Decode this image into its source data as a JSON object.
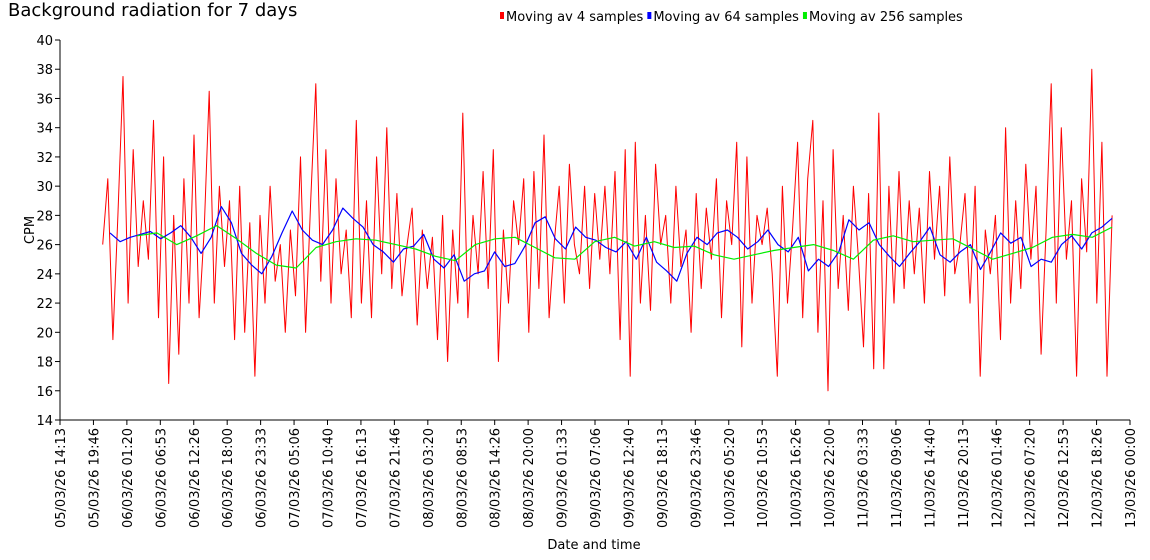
{
  "chart_data": {
    "type": "line",
    "title": "Background radiation for 7 days",
    "xlabel": "Date and time",
    "ylabel": "CPM",
    "ylim": [
      14,
      40
    ],
    "yticks": [
      14,
      16,
      18,
      20,
      22,
      24,
      26,
      28,
      30,
      32,
      34,
      36,
      38,
      40
    ],
    "xlim_hours": [
      0,
      177.78
    ],
    "xtick_labels": [
      "05/03/26 14:13",
      "05/03/26 19:46",
      "06/03/26 01:20",
      "06/03/26 06:53",
      "06/03/26 12:26",
      "06/03/26 18:00",
      "06/03/26 23:33",
      "07/03/26 05:06",
      "07/03/26 10:40",
      "07/03/26 16:13",
      "07/03/26 21:46",
      "08/03/26 03:20",
      "08/03/26 08:53",
      "08/03/26 14:26",
      "08/03/26 20:00",
      "09/03/26 01:33",
      "09/03/26 07:06",
      "09/03/26 12:40",
      "09/03/26 18:13",
      "09/03/26 23:46",
      "10/03/26 05:20",
      "10/03/26 10:53",
      "10/03/26 16:26",
      "10/03/26 22:00",
      "11/03/26 03:33",
      "11/03/26 09:06",
      "11/03/26 14:40",
      "11/03/26 20:13",
      "12/03/26 01:46",
      "12/03/26 07:20",
      "12/03/26 12:53",
      "12/03/26 18:26",
      "13/03/26 00:00"
    ],
    "grid": false,
    "legend_position": "top-center",
    "series": [
      {
        "name": "Moving av 4 samples",
        "color": "#ff0000",
        "x_start_hours": 7.1,
        "x_end_hours": 174.8,
        "values": [
          26,
          30.5,
          19.5,
          28,
          37.5,
          22,
          32.5,
          24.5,
          29,
          25,
          34.5,
          21,
          32,
          16.5,
          28,
          18.5,
          30.5,
          22,
          33.5,
          21,
          27,
          36.5,
          22,
          30,
          24.5,
          29,
          19.5,
          30,
          20,
          27.5,
          17,
          28,
          22,
          30,
          23.5,
          26,
          20,
          27,
          22.5,
          32,
          20,
          29,
          37,
          23.5,
          32.5,
          22,
          30.5,
          24,
          27,
          21,
          34.5,
          22,
          29,
          21,
          32,
          24,
          34,
          23,
          29.5,
          22.5,
          26,
          28.5,
          20.5,
          27,
          23,
          26.5,
          19.5,
          28,
          18,
          27,
          22,
          35,
          21,
          28,
          24,
          31,
          23,
          32.5,
          18,
          27,
          22,
          29,
          26,
          30.5,
          20,
          31,
          23,
          33.5,
          21,
          26,
          30,
          22,
          31.5,
          26,
          24,
          30,
          23,
          29.5,
          25,
          30,
          24,
          31,
          19.5,
          32.5,
          17,
          33,
          22,
          28,
          21.5,
          31.5,
          26,
          28,
          22,
          30,
          24.5,
          27,
          20,
          29.5,
          23,
          28.5,
          25,
          30.5,
          21,
          29,
          26,
          33,
          19,
          32,
          22,
          28,
          26,
          28.5,
          24,
          17,
          30,
          22,
          27,
          33,
          21,
          30.5,
          34.5,
          20,
          29,
          16,
          32.5,
          23,
          28,
          21.5,
          30,
          25,
          19,
          29.5,
          17.5,
          35,
          17.5,
          30,
          22,
          31,
          23,
          29,
          24,
          28.5,
          22,
          31,
          25,
          30,
          22.5,
          32,
          24,
          26,
          29.5,
          22,
          30,
          17,
          27,
          24,
          28,
          19.5,
          34,
          22,
          29,
          23,
          31.5,
          25,
          30,
          18.5,
          27,
          37,
          22,
          34,
          25,
          29,
          17,
          30.5,
          25.5,
          38,
          22,
          33,
          17,
          28
        ]
      },
      {
        "name": "Moving av 64 samples",
        "color": "#0000ff",
        "x_start_hours": 8.3,
        "x_end_hours": 174.8,
        "values": [
          26.8,
          26.2,
          26.5,
          26.7,
          26.9,
          26.4,
          26.8,
          27.3,
          26.5,
          25.4,
          26.5,
          28.6,
          27.5,
          25.4,
          24.6,
          24.0,
          25.2,
          26.8,
          28.3,
          27.0,
          26.3,
          26.0,
          27.0,
          28.5,
          27.8,
          27.2,
          26.0,
          25.5,
          24.8,
          25.7,
          25.9,
          26.7,
          25.0,
          24.4,
          25.3,
          23.5,
          24.0,
          24.2,
          25.5,
          24.5,
          24.7,
          25.9,
          27.5,
          27.9,
          26.4,
          25.7,
          27.2,
          26.5,
          26.3,
          25.8,
          25.5,
          26.2,
          25.0,
          26.5,
          24.8,
          24.2,
          23.5,
          25.4,
          26.5,
          26.0,
          26.8,
          27.0,
          26.5,
          25.7,
          26.2,
          27.0,
          26.0,
          25.5,
          26.5,
          24.2,
          25.0,
          24.5,
          25.5,
          27.7,
          27.0,
          27.5,
          26.0,
          25.2,
          24.5,
          25.4,
          26.2,
          27.2,
          25.3,
          24.8,
          25.5,
          26.0,
          24.3,
          25.5,
          26.8,
          26.1,
          26.5,
          24.5,
          25.0,
          24.8,
          26.0,
          26.6,
          25.7,
          26.8,
          27.2,
          27.8
        ]
      },
      {
        "name": "Moving av 256 samples",
        "color": "#00ee00",
        "x_start_hours": 12.8,
        "x_end_hours": 174.8,
        "values": [
          26.6,
          26.8,
          26.0,
          26.6,
          27.3,
          26.4,
          25.4,
          24.6,
          24.4,
          25.8,
          26.2,
          26.4,
          26.3,
          26.0,
          25.7,
          25.2,
          24.9,
          26.0,
          26.4,
          26.5,
          25.8,
          25.1,
          25.0,
          26.2,
          26.5,
          25.9,
          26.2,
          25.8,
          25.9,
          25.3,
          25.0,
          25.3,
          25.6,
          25.8,
          26.0,
          25.6,
          25.0,
          26.3,
          26.6,
          26.2,
          26.3,
          26.4,
          25.7,
          25.0,
          25.4,
          25.8,
          26.5,
          26.7,
          26.5,
          27.2
        ]
      }
    ]
  }
}
